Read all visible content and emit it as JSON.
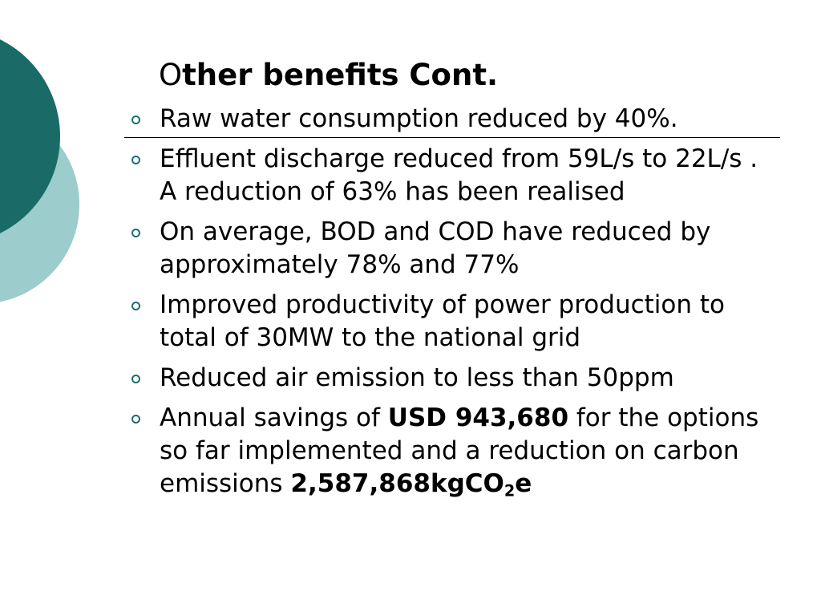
{
  "theme": {
    "dark_teal": "#1a6b68",
    "light_teal": "#9ccccc",
    "marker": "#1f6e6e"
  },
  "slide": {
    "title_first": "O",
    "title_rest": "ther benefits Cont.",
    "bullets": [
      {
        "text": "Raw water consumption reduced by 40%."
      },
      {
        "text": "Effluent discharge reduced from 59L/s  to 22L/s . A reduction of 63% has been realised"
      },
      {
        "text": "On average, BOD and COD have reduced by approximately 78% and 77%"
      },
      {
        "text": "Improved productivity of power production to total of 30MW to the national grid"
      },
      {
        "text": "Reduced air emission to less than 50ppm"
      },
      {
        "pre": "Annual savings of ",
        "savings": "USD 943,680",
        "mid": " for the options so far implemented and a reduction on carbon emissions ",
        "emissions": "2,587,868kgCO",
        "sub": "2",
        "suffix": "e"
      }
    ]
  }
}
